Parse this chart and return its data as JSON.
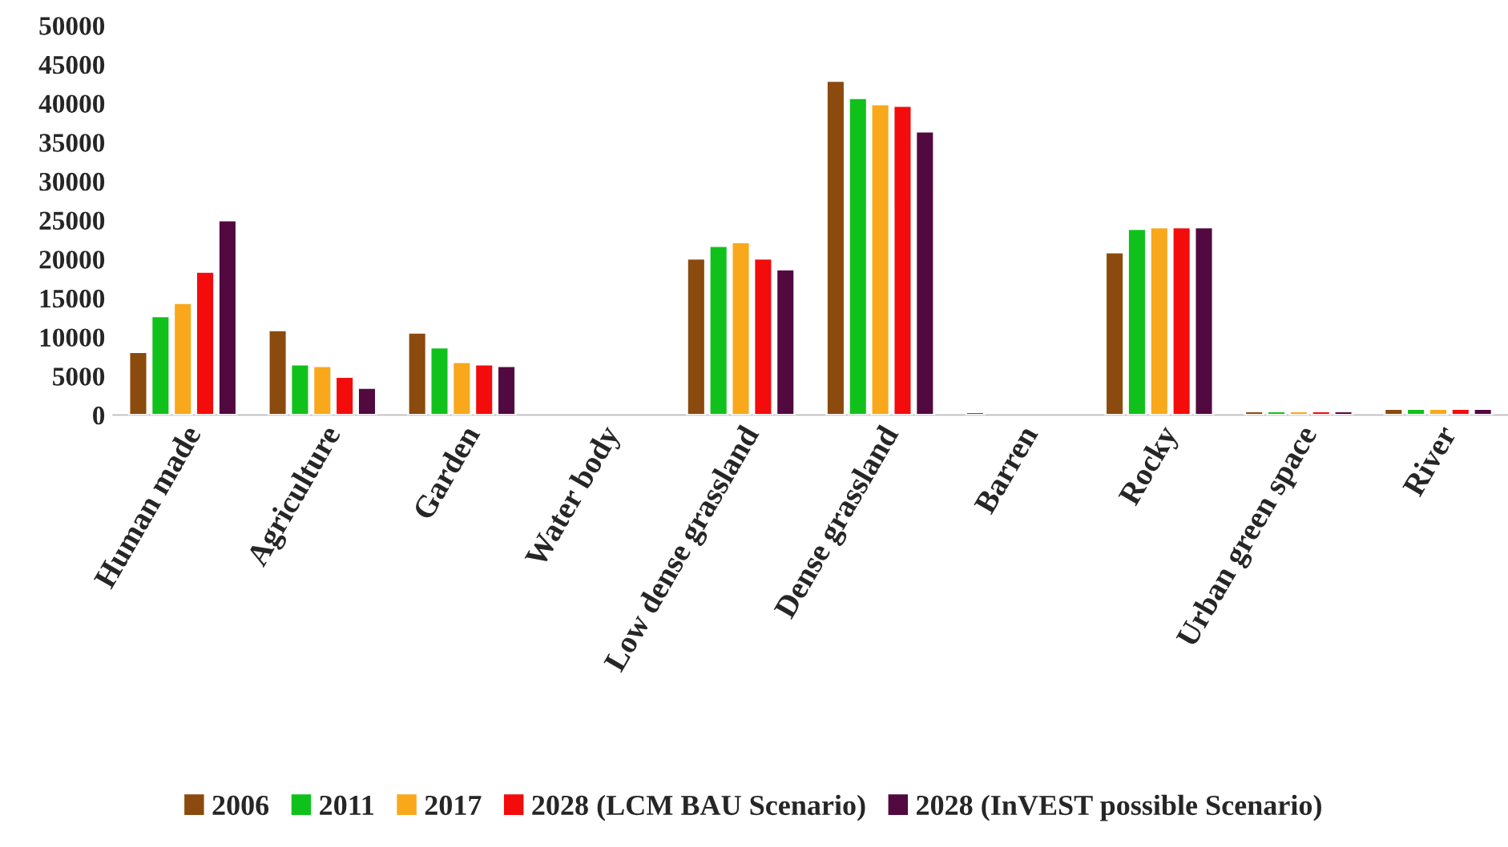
{
  "chart_data": {
    "type": "bar",
    "categories": [
      "Human made",
      "Agriculture",
      "Garden",
      "Water body",
      "Low dense grassland",
      "Dense grassland",
      "Barren",
      "Rocky",
      "Urban green space",
      "River"
    ],
    "series": [
      {
        "name": "2006",
        "color": "#8b4a0e",
        "values": [
          8100,
          10900,
          10600,
          null,
          20100,
          42900,
          400,
          20900,
          500,
          800
        ]
      },
      {
        "name": "2011",
        "color": "#11c11b",
        "values": [
          12700,
          6500,
          8700,
          null,
          21700,
          40700,
          null,
          23900,
          500,
          800
        ]
      },
      {
        "name": "2017",
        "color": "#f8a81a",
        "values": [
          14400,
          6300,
          6800,
          null,
          22200,
          39900,
          null,
          24100,
          500,
          800
        ]
      },
      {
        "name": "2028 (LCM BAU Scenario)",
        "color": "#f40b0b",
        "values": [
          18400,
          4900,
          6500,
          null,
          20100,
          39700,
          null,
          24100,
          500,
          800
        ]
      },
      {
        "name": "2028 (InVEST possible Scenario)",
        "color": "#520940",
        "values": [
          25000,
          3500,
          6300,
          null,
          18700,
          36400,
          null,
          24100,
          500,
          800
        ]
      }
    ],
    "ylim": [
      0,
      50000
    ],
    "yticks": [
      0,
      5000,
      10000,
      15000,
      20000,
      25000,
      30000,
      35000,
      40000,
      45000,
      50000
    ],
    "grid": false,
    "legend": "bottom"
  }
}
